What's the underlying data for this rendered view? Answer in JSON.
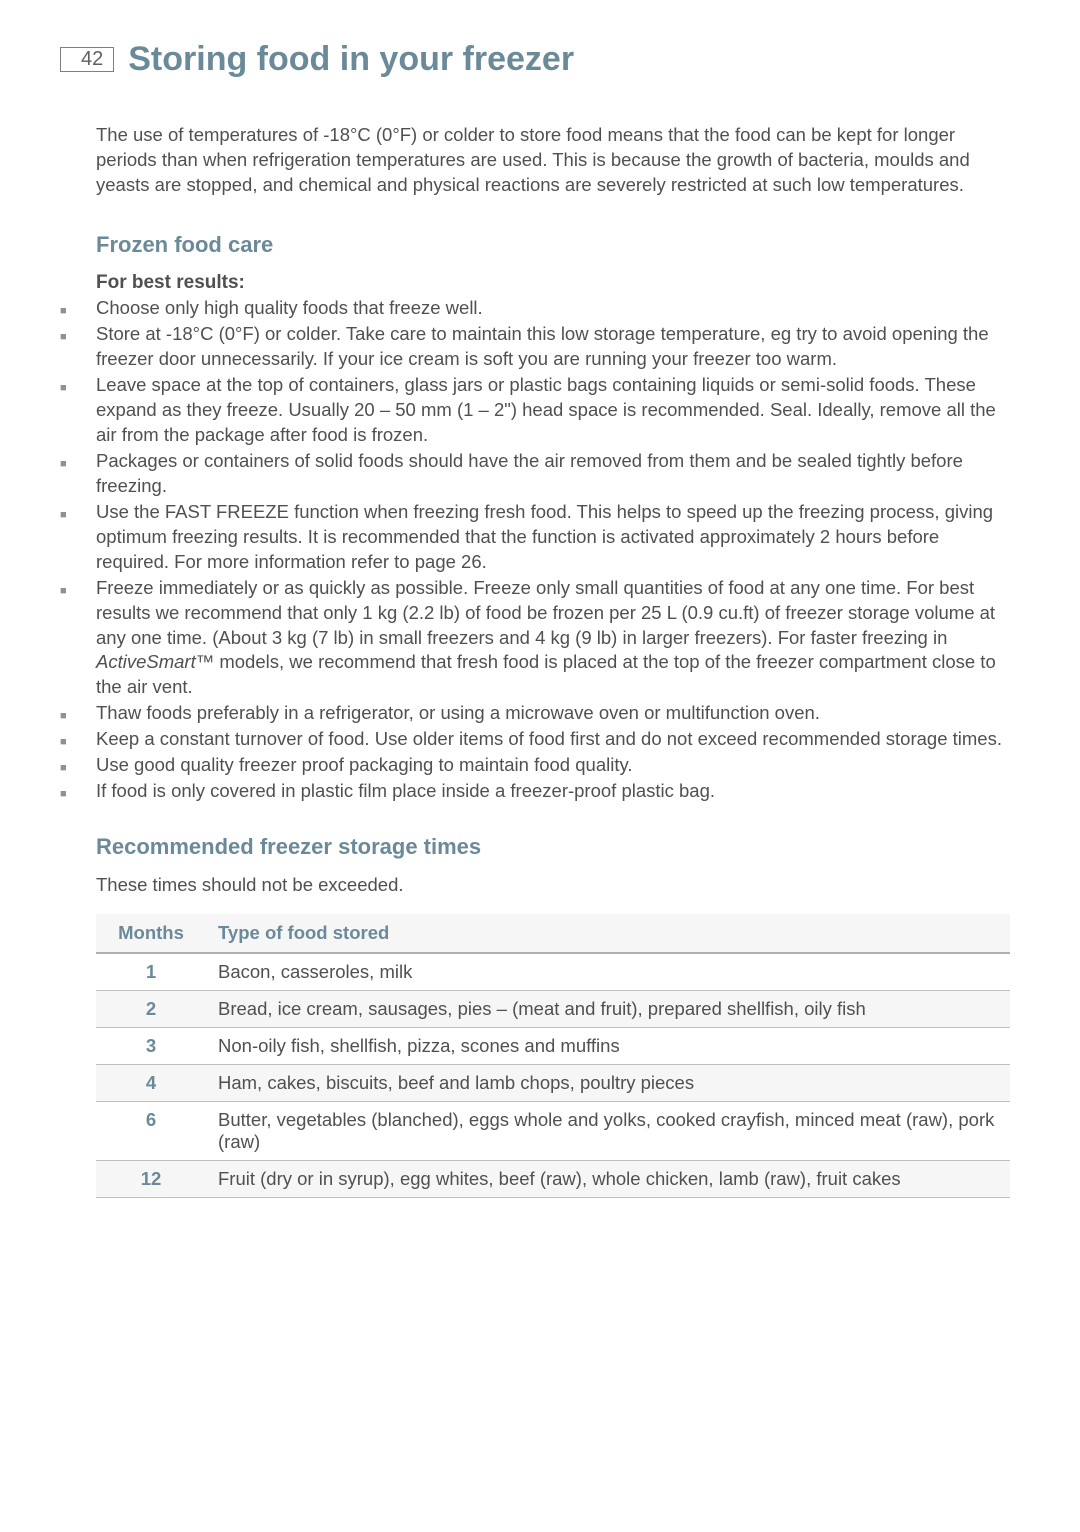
{
  "page_number": "42",
  "title": "Storing food in your freezer",
  "intro": "The use of temperatures of -18°C (0°F) or colder to store food means that the food can be kept for longer periods than when refrigeration temperatures are used. This is because the growth of bacteria, moulds and yeasts are stopped, and chemical and physical reactions are severely restricted at such low temperatures.",
  "section1": {
    "heading": "Frozen food care",
    "sub": "For best results:",
    "bullets": [
      "Choose only high quality foods that freeze well.",
      "Store at -18°C (0°F) or colder. Take care to maintain this low storage temperature, eg try to avoid opening the freezer door unnecessarily. If your ice cream is soft you are running your freezer too warm.",
      "Leave space at the top of containers, glass jars or plastic bags containing liquids or semi-solid foods. These expand as they freeze. Usually 20 – 50 mm (1 – 2\") head space is recommended. Seal. Ideally, remove all the air from the package after food is frozen.",
      "Packages or containers of solid foods should have the air removed from them and be sealed tightly before freezing.",
      "Use the FAST FREEZE function when freezing fresh food. This helps to speed up the freezing process, giving optimum freezing results. It is recommended that the function is activated approximately 2 hours before required. For more information refer to page 26.",
      "Freeze immediately or as quickly as possible. Freeze only small quantities of food at any one time. For best results we recommend that only 1 kg (2.2 lb) of food be frozen per 25 L (0.9 cu.ft) of freezer storage volume at any one time. (About 3 kg (7 lb) in small freezers and 4 kg (9 lb) in larger freezers). For faster freezing in ActiveSmart™ models, we recommend that fresh food is placed at the top of the freezer compartment close to the air vent.",
      "Thaw foods preferably in a refrigerator, or using a microwave oven or multifunction oven.",
      "Keep a constant turnover of food. Use older items of food first and do not exceed recommended storage times.",
      "Use good quality freezer proof packaging to maintain food quality.",
      "If food is only covered in plastic film place inside a freezer-proof plastic bag."
    ]
  },
  "section2": {
    "heading": "Recommended freezer storage times",
    "note": "These times should not be exceeded.",
    "table": {
      "headers": {
        "months": "Months",
        "type": "Type of food stored"
      },
      "rows": [
        {
          "months": "1",
          "type": "Bacon, casseroles, milk"
        },
        {
          "months": "2",
          "type": "Bread, ice cream, sausages, pies – (meat and fruit), prepared shellfish, oily fish"
        },
        {
          "months": "3",
          "type": "Non-oily fish, shellfish, pizza, scones and muffins"
        },
        {
          "months": "4",
          "type": "Ham, cakes, biscuits, beef and lamb chops, poultry pieces"
        },
        {
          "months": "6",
          "type": "Butter, vegetables (blanched), eggs whole and yolks, cooked crayfish, minced meat (raw), pork (raw)"
        },
        {
          "months": "12",
          "type": "Fruit (dry or in syrup), egg whites, beef (raw), whole chicken, lamb (raw), fruit cakes"
        }
      ]
    }
  },
  "colors": {
    "accent": "#6b8a99",
    "body_text": "#505050",
    "bullet": "#909090",
    "border": "#b0b0b0"
  }
}
